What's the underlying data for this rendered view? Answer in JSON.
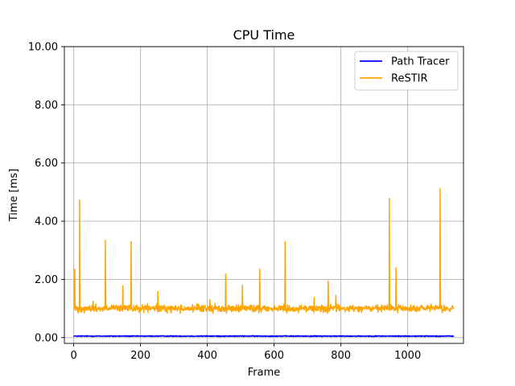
{
  "chart_data": {
    "type": "line",
    "title": "CPU Time",
    "xlabel": "Frame",
    "ylabel": "Time [ms]",
    "xlim": [
      -28,
      1167
    ],
    "ylim": [
      -0.2,
      10.0
    ],
    "xticks": [
      0,
      200,
      400,
      600,
      800,
      1000
    ],
    "xtick_labels": [
      "0",
      "200",
      "400",
      "600",
      "800",
      "1000"
    ],
    "yticks": [
      0,
      2,
      4,
      6,
      8,
      10
    ],
    "ytick_labels": [
      "0.00",
      "2.00",
      "4.00",
      "6.00",
      "8.00",
      "10.00"
    ],
    "grid": true,
    "legend_position": "top-right",
    "frames": 1139,
    "series": [
      {
        "name": "Path Tracer",
        "color": "#0000ff",
        "baseline": 0.05,
        "noise": 0.012,
        "spikes": []
      },
      {
        "name": "ReSTIR",
        "color": "#ffa500",
        "baseline": 1.0,
        "noise": 0.09,
        "spikes": [
          {
            "frame": 3,
            "value": 2.35
          },
          {
            "frame": 18,
            "value": 4.72
          },
          {
            "frame": 58,
            "value": 1.25
          },
          {
            "frame": 95,
            "value": 3.35
          },
          {
            "frame": 147,
            "value": 1.78
          },
          {
            "frame": 172,
            "value": 3.3
          },
          {
            "frame": 252,
            "value": 1.58
          },
          {
            "frame": 408,
            "value": 1.3
          },
          {
            "frame": 455,
            "value": 2.18
          },
          {
            "frame": 505,
            "value": 1.8
          },
          {
            "frame": 557,
            "value": 2.35
          },
          {
            "frame": 633,
            "value": 3.3
          },
          {
            "frame": 720,
            "value": 1.38
          },
          {
            "frame": 762,
            "value": 1.95
          },
          {
            "frame": 785,
            "value": 1.45
          },
          {
            "frame": 945,
            "value": 4.78
          },
          {
            "frame": 965,
            "value": 2.4
          },
          {
            "frame": 1097,
            "value": 5.12
          }
        ]
      }
    ]
  }
}
